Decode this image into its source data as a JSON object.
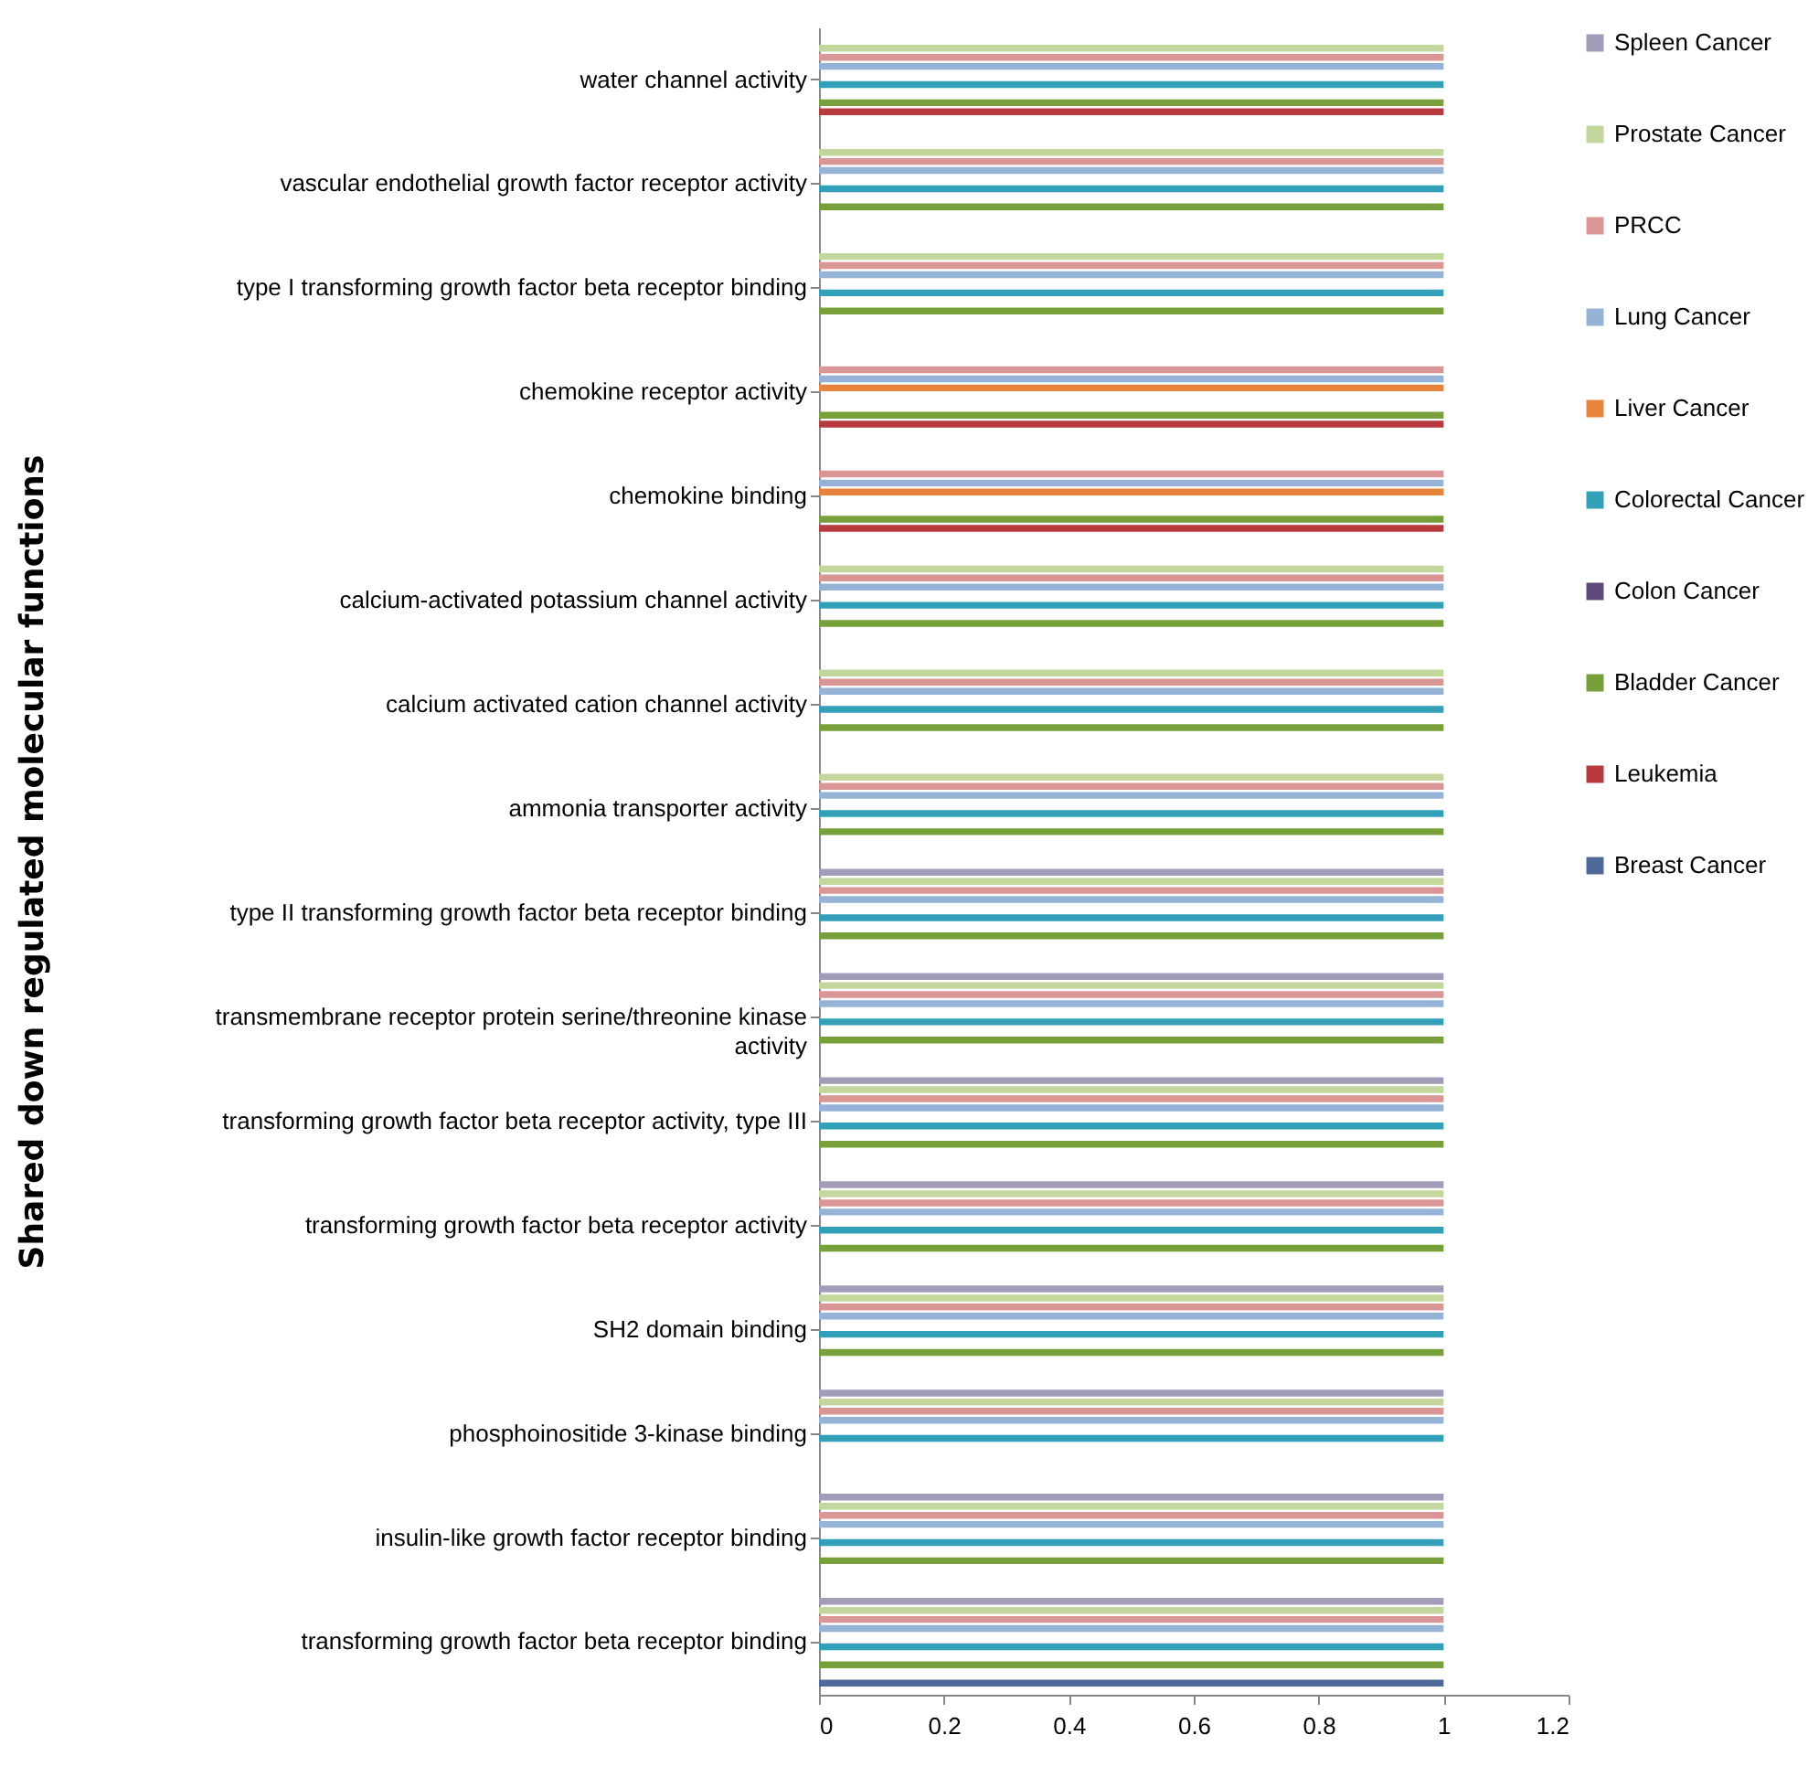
{
  "chart_data": {
    "type": "bar",
    "orientation": "horizontal",
    "ylabel": "Shared down regulated molecular functions",
    "categories": [
      "water channel activity",
      "vascular endothelial growth factor receptor activity",
      "type I transforming growth factor beta receptor binding",
      "chemokine receptor activity",
      "chemokine binding",
      "calcium-activated potassium channel activity",
      "calcium activated cation channel activity",
      "ammonia transporter activity",
      "type II transforming growth factor beta receptor binding",
      "transmembrane receptor protein serine/threonine kinase activity",
      "transforming growth factor beta receptor activity, type III",
      "transforming growth factor beta receptor activity",
      "SH2 domain binding",
      "phosphoinositide 3-kinase binding",
      "insulin-like growth factor receptor binding",
      "transforming growth factor beta receptor binding"
    ],
    "series": [
      {
        "name": "Spleen Cancer",
        "color": "#a29cb8",
        "values": [
          null,
          null,
          null,
          null,
          null,
          null,
          null,
          null,
          1,
          1,
          1,
          1,
          1,
          1,
          1,
          1
        ]
      },
      {
        "name": "Prostate Cancer",
        "color": "#c3d69b",
        "values": [
          1,
          1,
          1,
          null,
          null,
          1,
          1,
          1,
          1,
          1,
          1,
          1,
          1,
          1,
          1,
          1
        ]
      },
      {
        "name": "PRCC",
        "color": "#d99694",
        "values": [
          1,
          1,
          1,
          1,
          1,
          1,
          1,
          1,
          1,
          1,
          1,
          1,
          1,
          1,
          1,
          1
        ]
      },
      {
        "name": "Lung Cancer",
        "color": "#95b3d7",
        "values": [
          1,
          1,
          1,
          1,
          1,
          1,
          1,
          1,
          1,
          1,
          1,
          1,
          1,
          1,
          1,
          1
        ]
      },
      {
        "name": "Liver Cancer",
        "color": "#e8833a",
        "values": [
          null,
          null,
          null,
          1,
          1,
          null,
          null,
          null,
          null,
          null,
          null,
          null,
          null,
          null,
          null,
          null
        ]
      },
      {
        "name": "Colorectal Cancer",
        "color": "#31a0b8",
        "values": [
          1,
          1,
          1,
          null,
          null,
          1,
          1,
          1,
          1,
          1,
          1,
          1,
          1,
          1,
          1,
          1
        ]
      },
      {
        "name": "Colon Cancer",
        "color": "#604a7b",
        "values": [
          null,
          null,
          null,
          null,
          null,
          null,
          null,
          null,
          null,
          null,
          null,
          null,
          null,
          null,
          null,
          null
        ]
      },
      {
        "name": "Bladder Cancer",
        "color": "#77a03a",
        "values": [
          1,
          1,
          1,
          1,
          1,
          1,
          1,
          1,
          1,
          1,
          1,
          1,
          1,
          null,
          1,
          1
        ]
      },
      {
        "name": "Leukemia",
        "color": "#b83a3f",
        "values": [
          1,
          null,
          null,
          1,
          1,
          null,
          null,
          null,
          null,
          null,
          null,
          null,
          null,
          null,
          null,
          null
        ]
      },
      {
        "name": "Breast Cancer",
        "color": "#4f6a9a",
        "values": [
          null,
          null,
          null,
          null,
          null,
          null,
          null,
          null,
          null,
          null,
          null,
          null,
          null,
          null,
          null,
          1
        ]
      }
    ],
    "xlim": [
      0,
      1.2
    ],
    "xticks": [
      0,
      0.2,
      0.4,
      0.6,
      0.8,
      1,
      1.2
    ],
    "legend": "top right",
    "grid": false
  }
}
